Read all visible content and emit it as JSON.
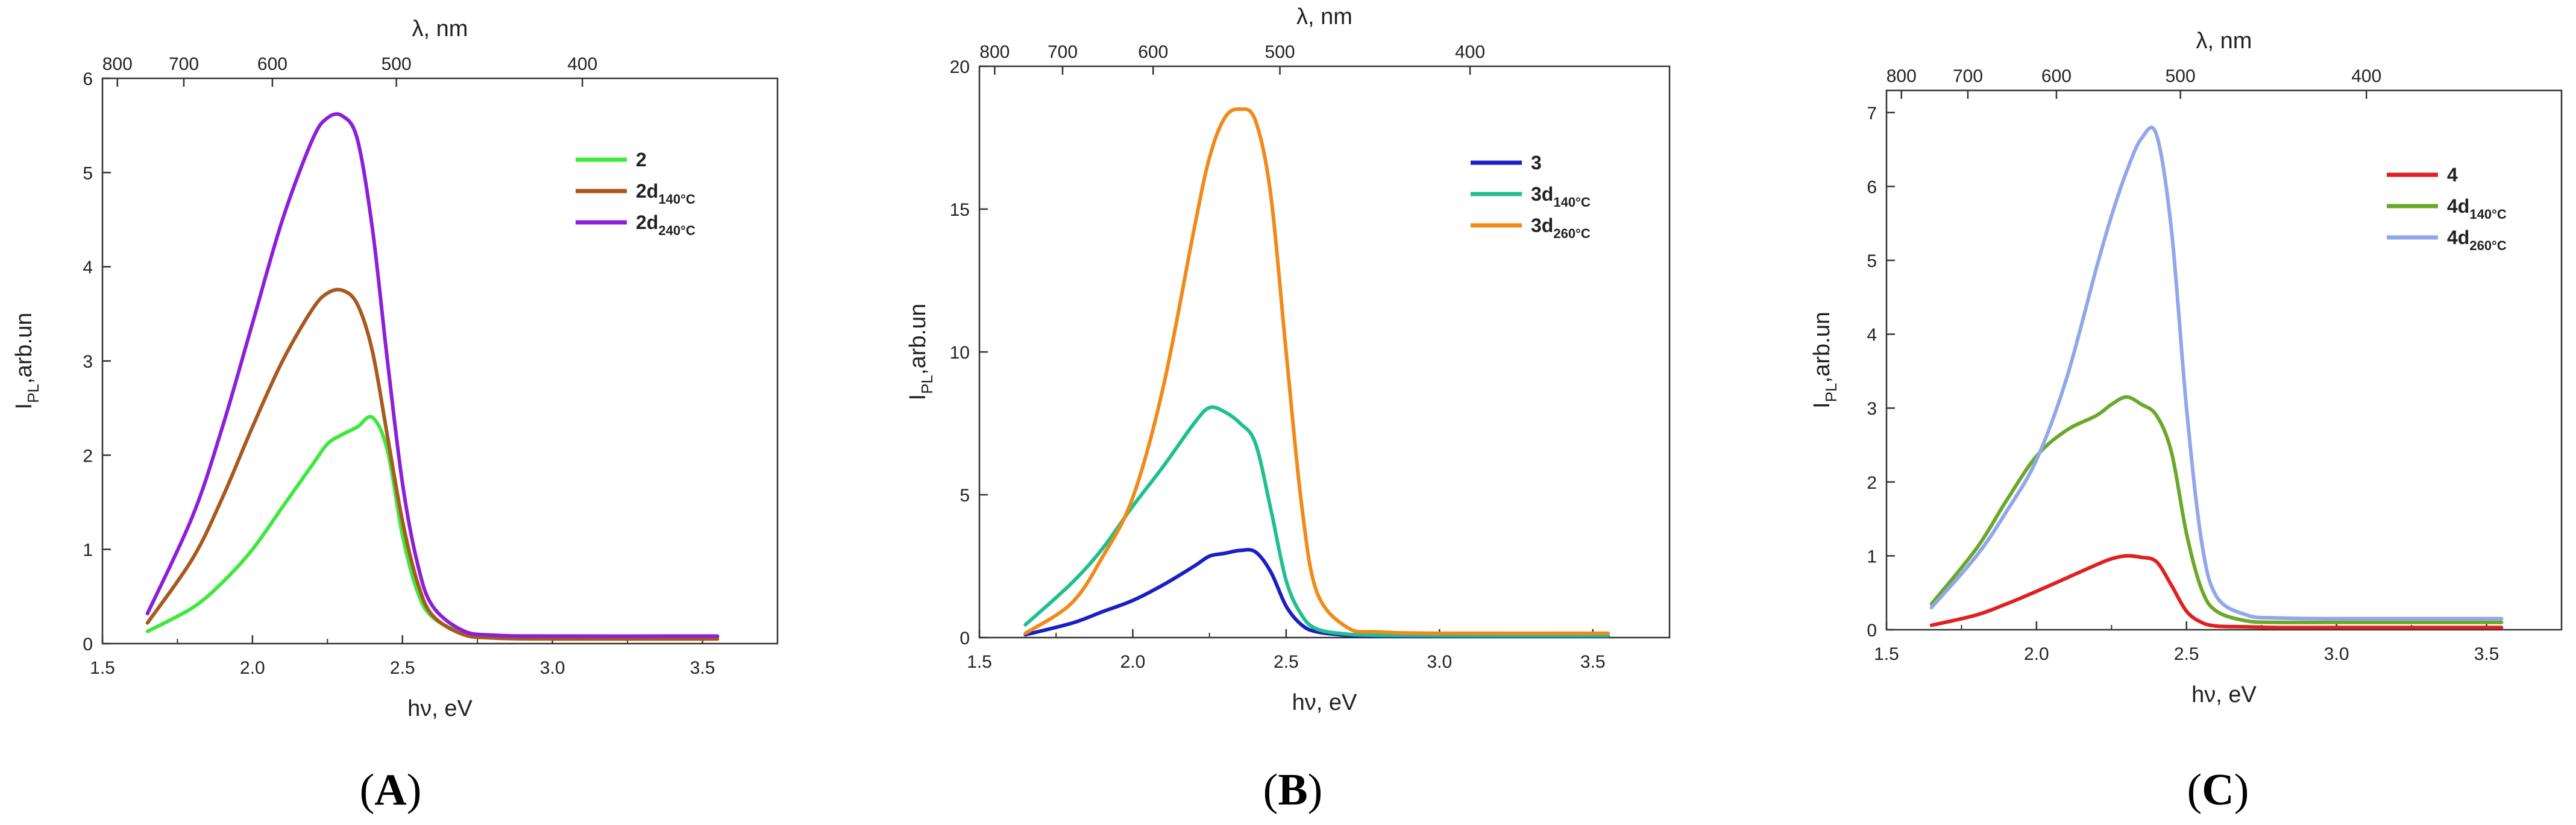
{
  "chart_data": [
    {
      "type": "line",
      "panel_label": "A",
      "xlabel": "hν, eV",
      "ylabel": "IPL,arb.un",
      "top_xlabel": "λ, nm",
      "xlim": [
        1.5,
        3.75
      ],
      "ylim": [
        0,
        6
      ],
      "x_ticks": [
        "1.5",
        "2.0",
        "2.5",
        "3.0",
        "3.5"
      ],
      "y_ticks": [
        "0",
        "1",
        "2",
        "3",
        "4",
        "5",
        "6"
      ],
      "top_ticks": [
        {
          "value_nm": 800,
          "label": "800"
        },
        {
          "value_nm": 700,
          "label": "700"
        },
        {
          "value_nm": 600,
          "label": "600"
        },
        {
          "value_nm": 500,
          "label": "500"
        },
        {
          "value_nm": 400,
          "label": "400"
        }
      ],
      "series": [
        {
          "name": "2",
          "sub": "",
          "color": "#3ee83e",
          "x": [
            1.65,
            1.8,
            1.9,
            2.0,
            2.1,
            2.2,
            2.25,
            2.3,
            2.35,
            2.4,
            2.45,
            2.5,
            2.55,
            2.6,
            2.7,
            2.8,
            3.0,
            3.55
          ],
          "y": [
            0.13,
            0.38,
            0.65,
            1.0,
            1.45,
            1.9,
            2.12,
            2.22,
            2.3,
            2.4,
            2.05,
            1.15,
            0.55,
            0.28,
            0.12,
            0.08,
            0.07,
            0.07
          ]
        },
        {
          "name": "2d",
          "sub": "140°C",
          "color": "#a8591f",
          "x": [
            1.65,
            1.8,
            1.9,
            2.0,
            2.1,
            2.2,
            2.25,
            2.3,
            2.35,
            2.4,
            2.45,
            2.5,
            2.55,
            2.6,
            2.7,
            2.8,
            3.0,
            3.55
          ],
          "y": [
            0.22,
            0.9,
            1.55,
            2.3,
            3.0,
            3.55,
            3.72,
            3.75,
            3.6,
            3.1,
            2.2,
            1.3,
            0.65,
            0.3,
            0.1,
            0.06,
            0.05,
            0.05
          ]
        },
        {
          "name": "2d",
          "sub": "240°C",
          "color": "#8b20d8",
          "x": [
            1.65,
            1.8,
            1.9,
            2.0,
            2.1,
            2.2,
            2.25,
            2.3,
            2.35,
            2.4,
            2.45,
            2.5,
            2.55,
            2.6,
            2.7,
            2.8,
            3.0,
            3.55
          ],
          "y": [
            0.32,
            1.35,
            2.3,
            3.4,
            4.5,
            5.35,
            5.58,
            5.6,
            5.35,
            4.4,
            3.0,
            1.7,
            0.85,
            0.4,
            0.14,
            0.09,
            0.08,
            0.08
          ]
        }
      ]
    },
    {
      "type": "line",
      "panel_label": "B",
      "xlabel": "hν, eV",
      "ylabel": "IPL,arb.un",
      "top_xlabel": "λ, nm",
      "xlim": [
        1.5,
        3.75
      ],
      "ylim": [
        0,
        20
      ],
      "x_ticks": [
        "1.5",
        "2.0",
        "2.5",
        "3.0",
        "3.5"
      ],
      "y_ticks": [
        "0",
        "5",
        "10",
        "15",
        "20"
      ],
      "top_ticks": [
        {
          "value_nm": 800,
          "label": "800"
        },
        {
          "value_nm": 700,
          "label": "700"
        },
        {
          "value_nm": 600,
          "label": "600"
        },
        {
          "value_nm": 500,
          "label": "500"
        },
        {
          "value_nm": 400,
          "label": "400"
        }
      ],
      "series": [
        {
          "name": "3",
          "sub": "",
          "color": "#1a1fc4",
          "x": [
            1.65,
            1.8,
            1.9,
            2.0,
            2.1,
            2.2,
            2.25,
            2.3,
            2.35,
            2.4,
            2.45,
            2.5,
            2.55,
            2.6,
            2.7,
            2.8,
            3.0,
            3.55
          ],
          "y": [
            0.1,
            0.5,
            0.9,
            1.3,
            1.85,
            2.5,
            2.85,
            2.95,
            3.05,
            3.0,
            2.3,
            1.1,
            0.45,
            0.2,
            0.08,
            0.05,
            0.05,
            0.05
          ]
        },
        {
          "name": "3d",
          "sub": "140°C",
          "color": "#1fc08f",
          "x": [
            1.65,
            1.8,
            1.9,
            2.0,
            2.1,
            2.2,
            2.25,
            2.3,
            2.35,
            2.4,
            2.45,
            2.5,
            2.55,
            2.6,
            2.7,
            2.8,
            3.0,
            3.55
          ],
          "y": [
            0.45,
            1.9,
            3.1,
            4.6,
            6.0,
            7.5,
            8.05,
            7.9,
            7.5,
            6.8,
            4.5,
            2.0,
            0.8,
            0.3,
            0.12,
            0.08,
            0.07,
            0.07
          ]
        },
        {
          "name": "3d",
          "sub": "260°C",
          "color": "#f08a18",
          "x": [
            1.65,
            1.8,
            1.9,
            2.0,
            2.1,
            2.2,
            2.25,
            2.3,
            2.35,
            2.4,
            2.45,
            2.5,
            2.55,
            2.6,
            2.7,
            2.8,
            3.0,
            3.55
          ],
          "y": [
            0.15,
            1.2,
            2.8,
            4.9,
            8.8,
            14.3,
            16.8,
            18.2,
            18.5,
            18.1,
            15.5,
            10.0,
            4.7,
            1.6,
            0.35,
            0.2,
            0.15,
            0.15
          ]
        }
      ]
    },
    {
      "type": "line",
      "panel_label": "C",
      "xlabel": "hν, eV",
      "ylabel": "IPL,arb.un",
      "top_xlabel": "λ, nm",
      "xlim": [
        1.5,
        3.75
      ],
      "ylim": [
        0,
        7.3
      ],
      "x_ticks": [
        "1.5",
        "2.0",
        "2.5",
        "3.0",
        "3.5"
      ],
      "y_ticks": [
        "0",
        "1",
        "2",
        "3",
        "4",
        "5",
        "6",
        "7"
      ],
      "top_ticks": [
        {
          "value_nm": 800,
          "label": "800"
        },
        {
          "value_nm": 700,
          "label": "700"
        },
        {
          "value_nm": 600,
          "label": "600"
        },
        {
          "value_nm": 500,
          "label": "500"
        },
        {
          "value_nm": 400,
          "label": "400"
        }
      ],
      "series": [
        {
          "name": "4",
          "sub": "",
          "color": "#e02020",
          "x": [
            1.65,
            1.8,
            1.9,
            2.0,
            2.1,
            2.2,
            2.25,
            2.3,
            2.35,
            2.4,
            2.45,
            2.5,
            2.55,
            2.6,
            2.7,
            2.8,
            3.0,
            3.55
          ],
          "y": [
            0.06,
            0.2,
            0.35,
            0.52,
            0.7,
            0.88,
            0.96,
            1.0,
            0.98,
            0.92,
            0.6,
            0.25,
            0.1,
            0.05,
            0.04,
            0.03,
            0.03,
            0.03
          ]
        },
        {
          "name": "4d",
          "sub": "140°C",
          "color": "#6aa82a",
          "x": [
            1.65,
            1.8,
            1.9,
            2.0,
            2.1,
            2.2,
            2.25,
            2.3,
            2.35,
            2.4,
            2.45,
            2.5,
            2.55,
            2.6,
            2.7,
            2.8,
            3.0,
            3.55
          ],
          "y": [
            0.35,
            1.1,
            1.75,
            2.35,
            2.7,
            2.9,
            3.05,
            3.15,
            3.05,
            2.9,
            2.4,
            1.3,
            0.55,
            0.25,
            0.12,
            0.1,
            0.1,
            0.1
          ]
        },
        {
          "name": "4d",
          "sub": "260°C",
          "color": "#92a6ea",
          "x": [
            1.65,
            1.8,
            1.9,
            2.0,
            2.1,
            2.2,
            2.25,
            2.3,
            2.35,
            2.4,
            2.45,
            2.5,
            2.55,
            2.6,
            2.7,
            2.8,
            3.0,
            3.55
          ],
          "y": [
            0.3,
            1.0,
            1.6,
            2.3,
            3.4,
            4.9,
            5.6,
            6.2,
            6.65,
            6.7,
            5.4,
            3.0,
            1.2,
            0.45,
            0.2,
            0.16,
            0.15,
            0.15
          ]
        }
      ]
    }
  ]
}
